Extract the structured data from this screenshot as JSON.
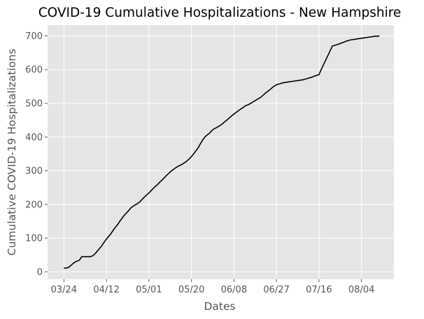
{
  "chart_data": {
    "type": "line",
    "title": "COVID-19 Cumulative Hospitalizations - New Hampshire",
    "xlabel": "Dates",
    "ylabel": "Cumulative COVID-19 Hospitalizations",
    "x_ticks": [
      "03/24",
      "04/12",
      "05/01",
      "05/20",
      "06/08",
      "06/27",
      "07/16",
      "08/04"
    ],
    "y_ticks": [
      0,
      100,
      200,
      300,
      400,
      500,
      600,
      700
    ],
    "x_start": "2020-03-24",
    "ylim": [
      -22,
      732
    ],
    "grid": true,
    "series": [
      {
        "color": "#000000",
        "points": [
          [
            "2020-03-24",
            11
          ],
          [
            "2020-03-25",
            11
          ],
          [
            "2020-03-26",
            13
          ],
          [
            "2020-03-27",
            18
          ],
          [
            "2020-03-28",
            24
          ],
          [
            "2020-03-29",
            29
          ],
          [
            "2020-03-30",
            32
          ],
          [
            "2020-03-31",
            35
          ],
          [
            "2020-04-01",
            45
          ],
          [
            "2020-04-02",
            45
          ],
          [
            "2020-04-03",
            45
          ],
          [
            "2020-04-04",
            45
          ],
          [
            "2020-04-05",
            45
          ],
          [
            "2020-04-06",
            48
          ],
          [
            "2020-04-07",
            54
          ],
          [
            "2020-04-08",
            62
          ],
          [
            "2020-04-09",
            70
          ],
          [
            "2020-04-10",
            78
          ],
          [
            "2020-04-11",
            88
          ],
          [
            "2020-04-12",
            97
          ],
          [
            "2020-04-13",
            105
          ],
          [
            "2020-04-14",
            113
          ],
          [
            "2020-04-15",
            123
          ],
          [
            "2020-04-16",
            132
          ],
          [
            "2020-04-17",
            140
          ],
          [
            "2020-04-18",
            150
          ],
          [
            "2020-04-19",
            159
          ],
          [
            "2020-04-20",
            168
          ],
          [
            "2020-04-21",
            175
          ],
          [
            "2020-04-22",
            182
          ],
          [
            "2020-04-23",
            190
          ],
          [
            "2020-04-24",
            195
          ],
          [
            "2020-04-25",
            199
          ],
          [
            "2020-04-26",
            203
          ],
          [
            "2020-04-27",
            208
          ],
          [
            "2020-04-28",
            215
          ],
          [
            "2020-04-29",
            222
          ],
          [
            "2020-04-30",
            228
          ],
          [
            "2020-05-01",
            234
          ],
          [
            "2020-05-02",
            241
          ],
          [
            "2020-05-03",
            248
          ],
          [
            "2020-05-04",
            254
          ],
          [
            "2020-05-05",
            260
          ],
          [
            "2020-05-06",
            267
          ],
          [
            "2020-05-07",
            273
          ],
          [
            "2020-05-08",
            280
          ],
          [
            "2020-05-09",
            287
          ],
          [
            "2020-05-10",
            293
          ],
          [
            "2020-05-11",
            299
          ],
          [
            "2020-05-12",
            304
          ],
          [
            "2020-05-13",
            309
          ],
          [
            "2020-05-14",
            313
          ],
          [
            "2020-05-15",
            316
          ],
          [
            "2020-05-16",
            320
          ],
          [
            "2020-05-17",
            324
          ],
          [
            "2020-05-18",
            329
          ],
          [
            "2020-05-19",
            335
          ],
          [
            "2020-05-20",
            342
          ],
          [
            "2020-05-21",
            350
          ],
          [
            "2020-05-22",
            359
          ],
          [
            "2020-05-23",
            368
          ],
          [
            "2020-05-24",
            380
          ],
          [
            "2020-05-25",
            391
          ],
          [
            "2020-05-26",
            400
          ],
          [
            "2020-05-27",
            406
          ],
          [
            "2020-05-28",
            411
          ],
          [
            "2020-05-29",
            418
          ],
          [
            "2020-05-30",
            424
          ],
          [
            "2020-05-31",
            427
          ],
          [
            "2020-06-01",
            431
          ],
          [
            "2020-06-02",
            435
          ],
          [
            "2020-06-03",
            440
          ],
          [
            "2020-06-04",
            446
          ],
          [
            "2020-06-05",
            451
          ],
          [
            "2020-06-06",
            457
          ],
          [
            "2020-06-07",
            463
          ],
          [
            "2020-06-08",
            468
          ],
          [
            "2020-06-09",
            473
          ],
          [
            "2020-06-10",
            478
          ],
          [
            "2020-06-11",
            483
          ],
          [
            "2020-06-12",
            487
          ],
          [
            "2020-06-13",
            492
          ],
          [
            "2020-06-14",
            495
          ],
          [
            "2020-06-15",
            498
          ],
          [
            "2020-06-16",
            502
          ],
          [
            "2020-06-17",
            506
          ],
          [
            "2020-06-18",
            510
          ],
          [
            "2020-06-19",
            514
          ],
          [
            "2020-06-20",
            518
          ],
          [
            "2020-06-21",
            524
          ],
          [
            "2020-06-22",
            530
          ],
          [
            "2020-06-23",
            535
          ],
          [
            "2020-06-24",
            540
          ],
          [
            "2020-06-25",
            546
          ],
          [
            "2020-06-26",
            551
          ],
          [
            "2020-06-27",
            555
          ],
          [
            "2020-06-28",
            557
          ],
          [
            "2020-06-29",
            559
          ],
          [
            "2020-06-30",
            561
          ],
          [
            "2020-07-01",
            562
          ],
          [
            "2020-07-02",
            563
          ],
          [
            "2020-07-03",
            564
          ],
          [
            "2020-07-04",
            565
          ],
          [
            "2020-07-05",
            566
          ],
          [
            "2020-07-06",
            567
          ],
          [
            "2020-07-07",
            568
          ],
          [
            "2020-07-08",
            569
          ],
          [
            "2020-07-09",
            570
          ],
          [
            "2020-07-10",
            572
          ],
          [
            "2020-07-11",
            574
          ],
          [
            "2020-07-12",
            576
          ],
          [
            "2020-07-13",
            578
          ],
          [
            "2020-07-14",
            581
          ],
          [
            "2020-07-15",
            583
          ],
          [
            "2020-07-16",
            585
          ],
          [
            "2020-07-17",
            600
          ],
          [
            "2020-07-18",
            614
          ],
          [
            "2020-07-19",
            628
          ],
          [
            "2020-07-20",
            642
          ],
          [
            "2020-07-21",
            656
          ],
          [
            "2020-07-22",
            670
          ],
          [
            "2020-07-23",
            672
          ],
          [
            "2020-07-24",
            674
          ],
          [
            "2020-07-25",
            676
          ],
          [
            "2020-07-26",
            679
          ],
          [
            "2020-07-27",
            681
          ],
          [
            "2020-07-28",
            684
          ],
          [
            "2020-07-29",
            686
          ],
          [
            "2020-07-30",
            688
          ],
          [
            "2020-07-31",
            689
          ],
          [
            "2020-08-01",
            690
          ],
          [
            "2020-08-02",
            691
          ],
          [
            "2020-08-03",
            692
          ],
          [
            "2020-08-04",
            693
          ],
          [
            "2020-08-05",
            694
          ],
          [
            "2020-08-06",
            695
          ],
          [
            "2020-08-07",
            696
          ],
          [
            "2020-08-08",
            697
          ],
          [
            "2020-08-09",
            698
          ],
          [
            "2020-08-10",
            699
          ],
          [
            "2020-08-11",
            699
          ],
          [
            "2020-08-12",
            700
          ]
        ]
      }
    ]
  },
  "colors": {
    "plot_background": "#e5e5e5",
    "grid": "#ffffff",
    "line": "#000000",
    "tick_text": "#555555"
  }
}
